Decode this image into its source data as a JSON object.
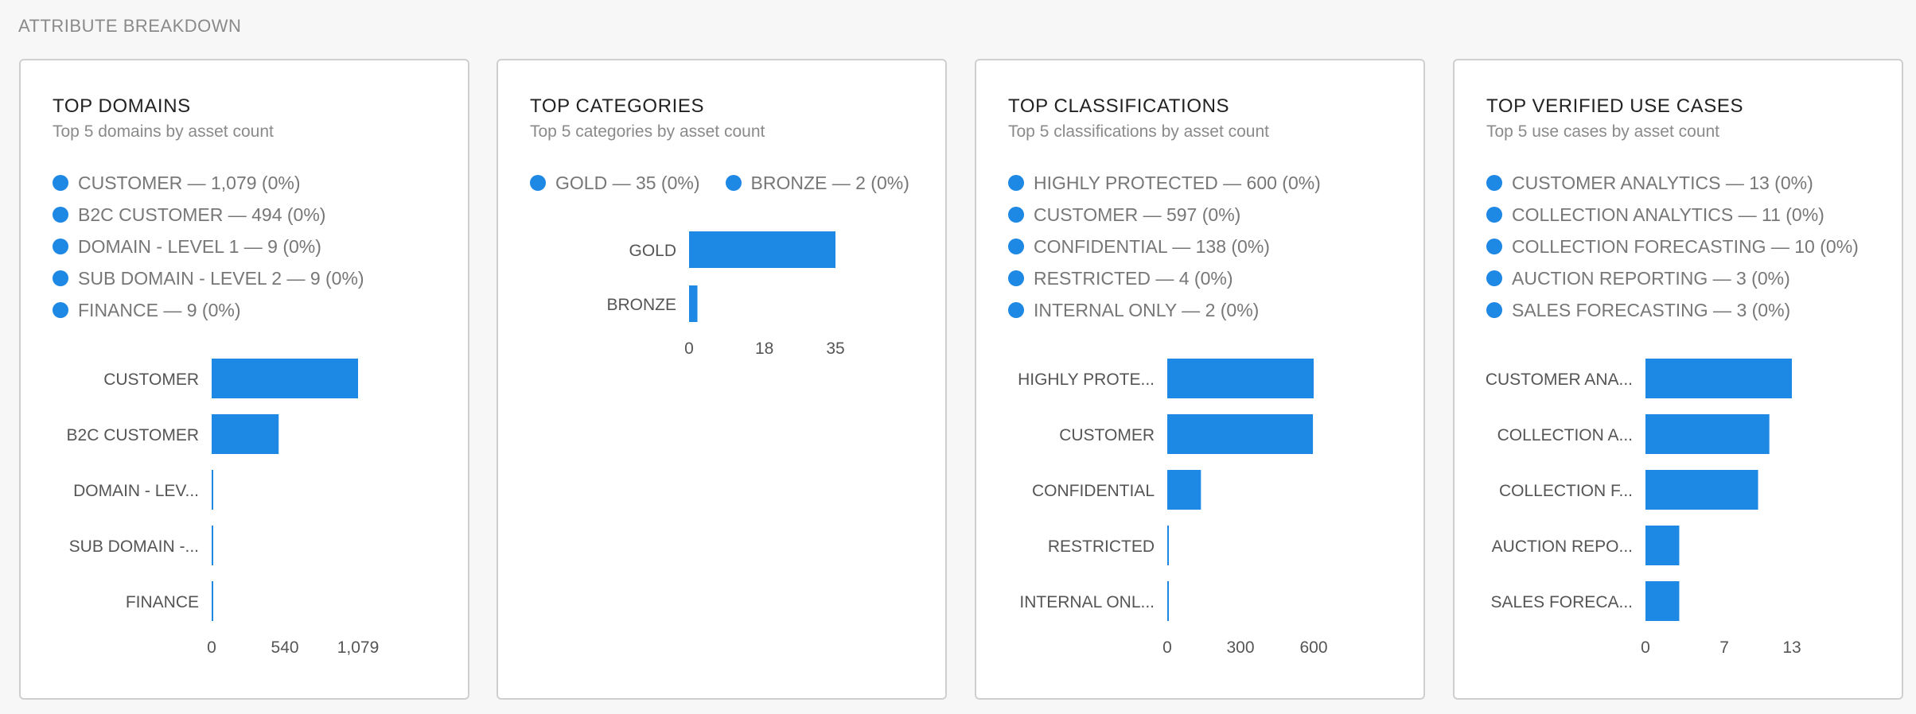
{
  "section_title": "ATTRIBUTE BREAKDOWN",
  "accent_color": "#1e88e5",
  "cards": [
    {
      "title": "TOP DOMAINS",
      "subtitle": "Top 5 domains by asset count",
      "legend": [
        "CUSTOMER — 1,079 (0%)",
        "B2C CUSTOMER — 494 (0%)",
        "DOMAIN - LEVEL 1 — 9 (0%)",
        "SUB DOMAIN - LEVEL 2 — 9 (0%)",
        "FINANCE — 9 (0%)"
      ],
      "chart_data": {
        "type": "bar",
        "orientation": "horizontal",
        "categories": [
          "CUSTOMER",
          "B2C CUSTOMER",
          "DOMAIN - LEV...",
          "SUB DOMAIN -...",
          "FINANCE"
        ],
        "values": [
          1079,
          494,
          9,
          9,
          9
        ],
        "xlim": [
          0,
          1079
        ],
        "xticks": [
          0,
          540,
          1079
        ],
        "xtick_labels": [
          "0",
          "540",
          "1,079"
        ],
        "grid": false
      }
    },
    {
      "title": "TOP CATEGORIES",
      "subtitle": "Top 5 categories by asset count",
      "legend": [
        "GOLD — 35 (0%)",
        "BRONZE — 2 (0%)"
      ],
      "chart_data": {
        "type": "bar",
        "orientation": "horizontal",
        "categories": [
          "GOLD",
          "BRONZE"
        ],
        "values": [
          35,
          2
        ],
        "xlim": [
          0,
          35
        ],
        "xticks": [
          0,
          18,
          35
        ],
        "xtick_labels": [
          "0",
          "18",
          "35"
        ],
        "grid": false
      }
    },
    {
      "title": "TOP CLASSIFICATIONS",
      "subtitle": "Top 5 classifications by asset count",
      "legend": [
        "HIGHLY PROTECTED — 600 (0%)",
        "CUSTOMER — 597 (0%)",
        "CONFIDENTIAL — 138 (0%)",
        "RESTRICTED — 4 (0%)",
        "INTERNAL ONLY — 2 (0%)"
      ],
      "chart_data": {
        "type": "bar",
        "orientation": "horizontal",
        "categories": [
          "HIGHLY PROTE...",
          "CUSTOMER",
          "CONFIDENTIAL",
          "RESTRICTED",
          "INTERNAL ONL..."
        ],
        "values": [
          600,
          597,
          138,
          4,
          2
        ],
        "xlim": [
          0,
          600
        ],
        "xticks": [
          0,
          300,
          600
        ],
        "xtick_labels": [
          "0",
          "300",
          "600"
        ],
        "grid": false
      }
    },
    {
      "title": "TOP VERIFIED USE CASES",
      "subtitle": "Top 5 use cases by asset count",
      "legend": [
        "CUSTOMER ANALYTICS — 13 (0%)",
        "COLLECTION ANALYTICS — 11 (0%)",
        "COLLECTION FORECASTING — 10 (0%)",
        "AUCTION REPORTING — 3 (0%)",
        "SALES FORECASTING — 3 (0%)"
      ],
      "chart_data": {
        "type": "bar",
        "orientation": "horizontal",
        "categories": [
          "CUSTOMER ANA...",
          "COLLECTION A...",
          "COLLECTION F...",
          "AUCTION REPO...",
          "SALES FORECA..."
        ],
        "values": [
          13,
          11,
          10,
          3,
          3
        ],
        "xlim": [
          0,
          13
        ],
        "xticks": [
          0,
          7,
          13
        ],
        "xtick_labels": [
          "0",
          "7",
          "13"
        ],
        "grid": false
      }
    }
  ]
}
